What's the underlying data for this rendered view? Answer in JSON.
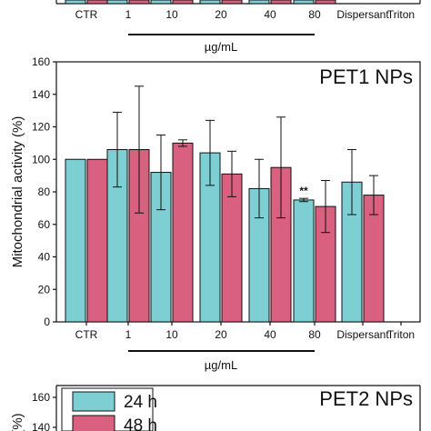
{
  "chart_data": [
    {
      "type": "bar",
      "panel": "top-partial",
      "categories": [
        "CTR",
        "1",
        "10",
        "20",
        "40",
        "80",
        "Dispersant",
        "Triton"
      ],
      "group_label": "µg/mL",
      "colors": {
        "24h": "#7ecfd4",
        "48h": "#d9607f"
      }
    },
    {
      "type": "bar",
      "title": "PET1 NPs",
      "ylabel": "Mitochondrial activity (%)",
      "ylim": [
        0,
        160
      ],
      "yticks": [
        0,
        20,
        40,
        60,
        80,
        100,
        120,
        140,
        160
      ],
      "categories": [
        "CTR",
        "1",
        "10",
        "20",
        "40",
        "80",
        "Dispersant",
        "Triton"
      ],
      "group_label": "µg/mL",
      "series": [
        {
          "name": "24 h",
          "color": "#7ecfd4",
          "values": [
            100,
            106,
            92,
            104,
            82,
            75,
            86,
            0
          ],
          "errors": [
            0,
            23,
            23,
            20,
            18,
            1,
            20,
            0
          ]
        },
        {
          "name": "48 h",
          "color": "#d9607f",
          "values": [
            100,
            106,
            110,
            91,
            95,
            71,
            78,
            0
          ],
          "errors": [
            0,
            39,
            2,
            14,
            31,
            16,
            12,
            0
          ]
        }
      ],
      "annotations": [
        {
          "category": "80",
          "series": "24 h",
          "text": "**"
        }
      ]
    },
    {
      "type": "bar",
      "panel": "bottom-partial",
      "title": "PET2 NPs",
      "ylabel": "(%)",
      "yticks": [
        160,
        140
      ],
      "legend": [
        "24 h",
        "48 h"
      ],
      "legend_position": "top-left"
    }
  ]
}
